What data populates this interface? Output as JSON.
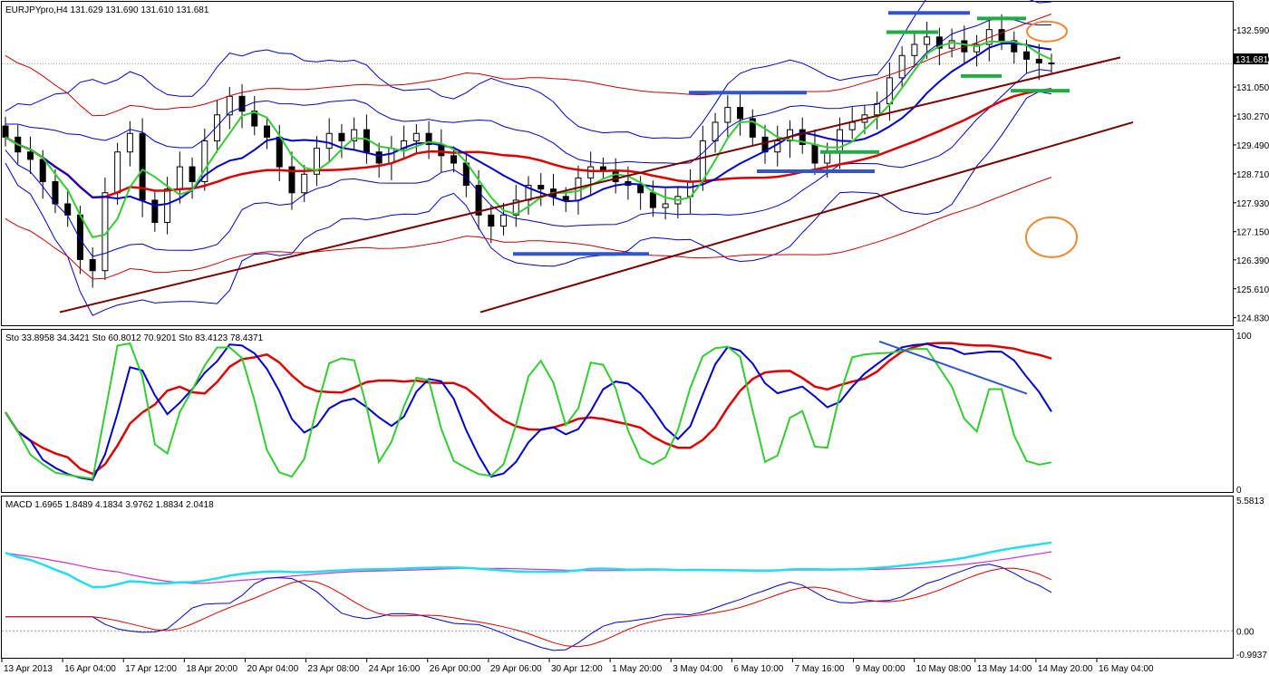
{
  "chart_data": [
    {
      "type": "candlestick",
      "title": "EURJPYpro,H4  131.629 131.690 131.610 131.681",
      "symbol": "EURJPYpro",
      "timeframe": "H4",
      "ohlc_header": {
        "open": 131.629,
        "high": 131.69,
        "low": 131.61,
        "close": 131.681
      },
      "current_price_label": "131.681",
      "y_ticks": [
        "132.590",
        "131.810",
        "131.050",
        "130.270",
        "129.490",
        "128.710",
        "127.930",
        "127.150",
        "126.390",
        "125.610",
        "124.830"
      ],
      "ylim": [
        124.7,
        133.3
      ],
      "x_ticks": [
        "13 Apr 2013",
        "16 Apr 04:00",
        "17 Apr 12:00",
        "18 Apr 20:00",
        "20 Apr 04:00",
        "23 Apr 08:00",
        "24 Apr 16:00",
        "26 Apr 00:00",
        "29 Apr 06:00",
        "30 Apr 12:00",
        "1 May 20:00",
        "3 May 04:00",
        "6 May 10:00",
        "7 May 16:00",
        "9 May 00:00",
        "10 May 08:00",
        "13 May 14:00",
        "14 May 20:00",
        "16 May 04:00"
      ],
      "close_series": [
        129.7,
        129.3,
        129.1,
        128.5,
        127.9,
        127.6,
        126.4,
        126.1,
        128.2,
        129.3,
        129.8,
        128.0,
        127.4,
        128.3,
        128.9,
        128.5,
        129.6,
        130.3,
        130.8,
        130.4,
        130.0,
        129.7,
        128.9,
        128.2,
        128.7,
        129.4,
        129.8,
        129.6,
        129.9,
        129.3,
        129.0,
        129.4,
        129.6,
        129.8,
        129.5,
        129.2,
        129.0,
        128.4,
        127.6,
        127.3,
        127.6,
        128.0,
        128.4,
        128.3,
        128.1,
        128.0,
        128.6,
        128.9,
        128.8,
        128.5,
        128.4,
        128.2,
        127.8,
        127.9,
        128.1,
        128.5,
        129.6,
        130.1,
        130.5,
        130.2,
        129.7,
        129.3,
        129.6,
        129.9,
        129.5,
        129.0,
        129.3,
        129.9,
        130.1,
        130.3,
        130.6,
        131.3,
        131.9,
        132.2,
        132.4,
        132.1,
        132.3,
        132.0,
        132.2,
        132.6,
        132.3,
        132.0,
        131.8,
        131.7,
        131.68
      ],
      "overlays": [
        "Bollinger Bands (blue)",
        "Envelope bands (red)",
        "Moving averages (green, blue, red)",
        "Trend lines (dark red)",
        "Horizontal support/resistance markers (blue, green)"
      ]
    },
    {
      "type": "line",
      "title": "Sto 33.8958 34.3421  Sto 60.8012 70.9201  Sto 83.4123 78.4371",
      "indicator": "Stochastic",
      "ylim": [
        0,
        100
      ],
      "y_ticks": [
        "100",
        "0"
      ],
      "series": [
        {
          "values": [
            33.8958,
            34.3421
          ]
        },
        {
          "values": [
            60.8012,
            70.9201
          ]
        },
        {
          "values": [
            83.4123,
            78.4371
          ]
        }
      ]
    },
    {
      "type": "line",
      "title": "MACD 1.6965 1.8489 4.1834 3.9762 1.8834 2.0418",
      "indicator": "MACD",
      "values": [
        1.6965,
        1.8489,
        4.1834,
        3.9762,
        1.8834,
        2.0418
      ],
      "y_ticks": [
        "5.5813",
        "0.00",
        "-0.9937"
      ],
      "ylim": [
        -0.9937,
        5.5813
      ]
    }
  ],
  "colors": {
    "candle": "#000000",
    "bollinger": "#0000cc",
    "envelope": "#cc0000",
    "ma_fast": "#33cc33",
    "ma_mid": "#0000cc",
    "ma_slow": "#dd0000",
    "trendline": "#7a0000",
    "marker_blue": "#3355cc",
    "marker_green": "#22aa44",
    "circle": "#ee8833",
    "macd_main": "#22ddee",
    "macd_signal": "#cc33cc",
    "price_label_bg": "#000000"
  }
}
